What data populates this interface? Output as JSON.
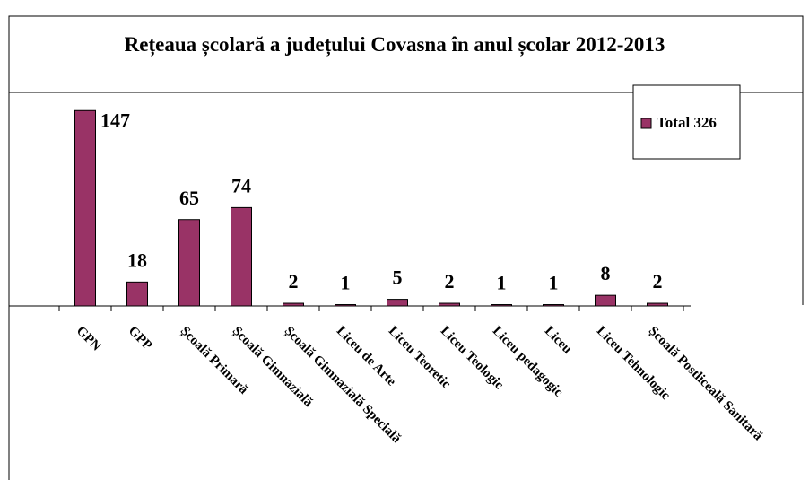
{
  "chart_data": {
    "type": "bar",
    "title": "Rețeaua școlară a județului Covasna în anul școlar 2012-2013",
    "categories": [
      "GPN",
      "GPP",
      "Școală Primară",
      "Școală Gimnazială",
      "Școală Gimnazială Specială",
      "Liceu de Arte",
      "Liceu Teoretic",
      "Liceu Teologic",
      "Liceu pedagogic",
      "Liceu",
      "Liceu Tehnologic",
      "Școală Postliceală Sanitară"
    ],
    "series": [
      {
        "name": "Total 326",
        "color": "#993366",
        "values": [
          147,
          18,
          65,
          74,
          2,
          1,
          5,
          2,
          1,
          1,
          8,
          2
        ]
      }
    ],
    "ylim": [
      0,
      160
    ],
    "legend": "right"
  }
}
